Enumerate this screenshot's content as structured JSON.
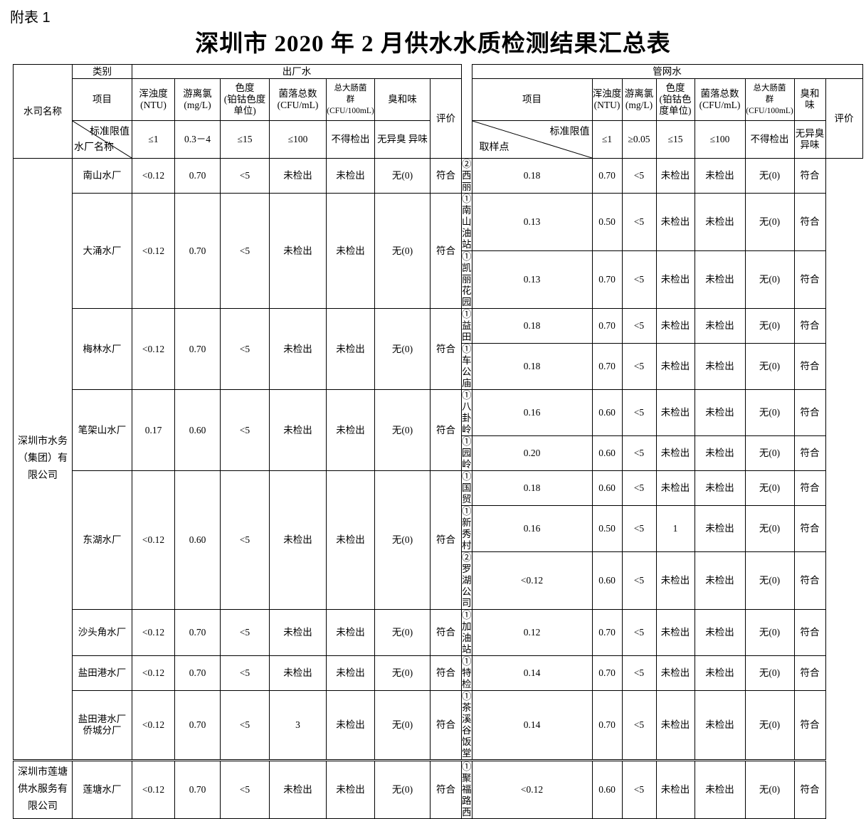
{
  "annex_label": "附表 1",
  "title": "深圳市 2020 年 2 月供水水质检测结果汇总表",
  "header": {
    "company_col": "水司名称",
    "category_label": "类别",
    "item_label": "项目",
    "outlet_water": "出厂水",
    "network_water": "管网水",
    "evaluation": "评价",
    "standard_limit": "标准限值",
    "plant_name": "水厂名称",
    "sampling_point": "取样点",
    "outlet_params": [
      "浑浊度\n(NTU)",
      "游离氯\n(mg/L)",
      "色度\n(铂钴色度\n单位)",
      "菌落总数\n(CFU/mL)",
      "总大肠菌\n群\n(CFU/100mL)",
      "臭和味"
    ],
    "outlet_limits": [
      "≤1",
      "0.3－4",
      "≤15",
      "≤100",
      "不得检出",
      "无异臭 异味"
    ],
    "network_params": [
      "浑浊度\n(NTU)",
      "游离氯\n(mg/L)",
      "色度\n(铂钴色\n度单位)",
      "菌落总数\n(CFU/mL)",
      "总大肠菌\n群\n(CFU/100mL)",
      "臭和\n味"
    ],
    "network_limits": [
      "≤1",
      "≥0.05",
      "≤15",
      "≤100",
      "不得检出",
      "无异臭\n异味"
    ]
  },
  "companies": [
    {
      "name": "深圳市水务\n（集团）有\n限公司",
      "plants": [
        {
          "name": "南山水厂",
          "values": [
            "<0.12",
            "0.70",
            "<5",
            "未检出",
            "未检出",
            "无(0)",
            "符合"
          ],
          "points": [
            {
              "name": "②西丽",
              "values": [
                "0.18",
                "0.70",
                "<5",
                "未检出",
                "未检出",
                "无(0)",
                "符合"
              ]
            }
          ]
        },
        {
          "name": "大涌水厂",
          "values": [
            "<0.12",
            "0.70",
            "<5",
            "未检出",
            "未检出",
            "无(0)",
            "符合"
          ],
          "points": [
            {
              "name": "①南山油站",
              "values": [
                "0.13",
                "0.50",
                "<5",
                "未检出",
                "未检出",
                "无(0)",
                "符合"
              ]
            },
            {
              "name": "①凯丽花园",
              "values": [
                "0.13",
                "0.70",
                "<5",
                "未检出",
                "未检出",
                "无(0)",
                "符合"
              ]
            }
          ]
        },
        {
          "name": "梅林水厂",
          "values": [
            "<0.12",
            "0.70",
            "<5",
            "未检出",
            "未检出",
            "无(0)",
            "符合"
          ],
          "points": [
            {
              "name": "①益田",
              "values": [
                "0.18",
                "0.70",
                "<5",
                "未检出",
                "未检出",
                "无(0)",
                "符合"
              ]
            },
            {
              "name": "①车公庙",
              "values": [
                "0.18",
                "0.70",
                "<5",
                "未检出",
                "未检出",
                "无(0)",
                "符合"
              ]
            }
          ]
        },
        {
          "name": "笔架山水厂",
          "values": [
            "0.17",
            "0.60",
            "<5",
            "未检出",
            "未检出",
            "无(0)",
            "符合"
          ],
          "points": [
            {
              "name": "①八卦岭",
              "values": [
                "0.16",
                "0.60",
                "<5",
                "未检出",
                "未检出",
                "无(0)",
                "符合"
              ]
            },
            {
              "name": "①园岭",
              "values": [
                "0.20",
                "0.60",
                "<5",
                "未检出",
                "未检出",
                "无(0)",
                "符合"
              ]
            }
          ]
        },
        {
          "name": "东湖水厂",
          "values": [
            "<0.12",
            "0.60",
            "<5",
            "未检出",
            "未检出",
            "无(0)",
            "符合"
          ],
          "points": [
            {
              "name": "①国贸",
              "values": [
                "0.18",
                "0.60",
                "<5",
                "未检出",
                "未检出",
                "无(0)",
                "符合"
              ]
            },
            {
              "name": "①新秀村",
              "values": [
                "0.16",
                "0.50",
                "<5",
                "1",
                "未检出",
                "无(0)",
                "符合"
              ]
            },
            {
              "name": "②罗湖公司",
              "values": [
                "<0.12",
                "0.60",
                "<5",
                "未检出",
                "未检出",
                "无(0)",
                "符合"
              ]
            }
          ]
        },
        {
          "name": "沙头角水厂",
          "values": [
            "<0.12",
            "0.70",
            "<5",
            "未检出",
            "未检出",
            "无(0)",
            "符合"
          ],
          "points": [
            {
              "name": "①加油站",
              "values": [
                "0.12",
                "0.70",
                "<5",
                "未检出",
                "未检出",
                "无(0)",
                "符合"
              ]
            }
          ]
        },
        {
          "name": "盐田港水厂",
          "values": [
            "<0.12",
            "0.70",
            "<5",
            "未检出",
            "未检出",
            "无(0)",
            "符合"
          ],
          "points": [
            {
              "name": "①特检",
              "values": [
                "0.14",
                "0.70",
                "<5",
                "未检出",
                "未检出",
                "无(0)",
                "符合"
              ]
            }
          ]
        },
        {
          "name": "盐田港水厂\n侨城分厂",
          "values": [
            "<0.12",
            "0.70",
            "<5",
            "3",
            "未检出",
            "无(0)",
            "符合"
          ],
          "points": [
            {
              "name": "①茶溪谷饭堂",
              "values": [
                "0.14",
                "0.70",
                "<5",
                "未检出",
                "未检出",
                "无(0)",
                "符合"
              ]
            }
          ]
        }
      ]
    },
    {
      "name": "深圳市莲塘\n供水服务有\n限公司",
      "plants": [
        {
          "name": "莲塘水厂",
          "values": [
            "<0.12",
            "0.70",
            "<5",
            "未检出",
            "未检出",
            "无(0)",
            "符合"
          ],
          "points": [
            {
              "name": "①聚福路西",
              "values": [
                "<0.12",
                "0.60",
                "<5",
                "未检出",
                "未检出",
                "无(0)",
                "符合"
              ]
            }
          ]
        }
      ]
    }
  ]
}
